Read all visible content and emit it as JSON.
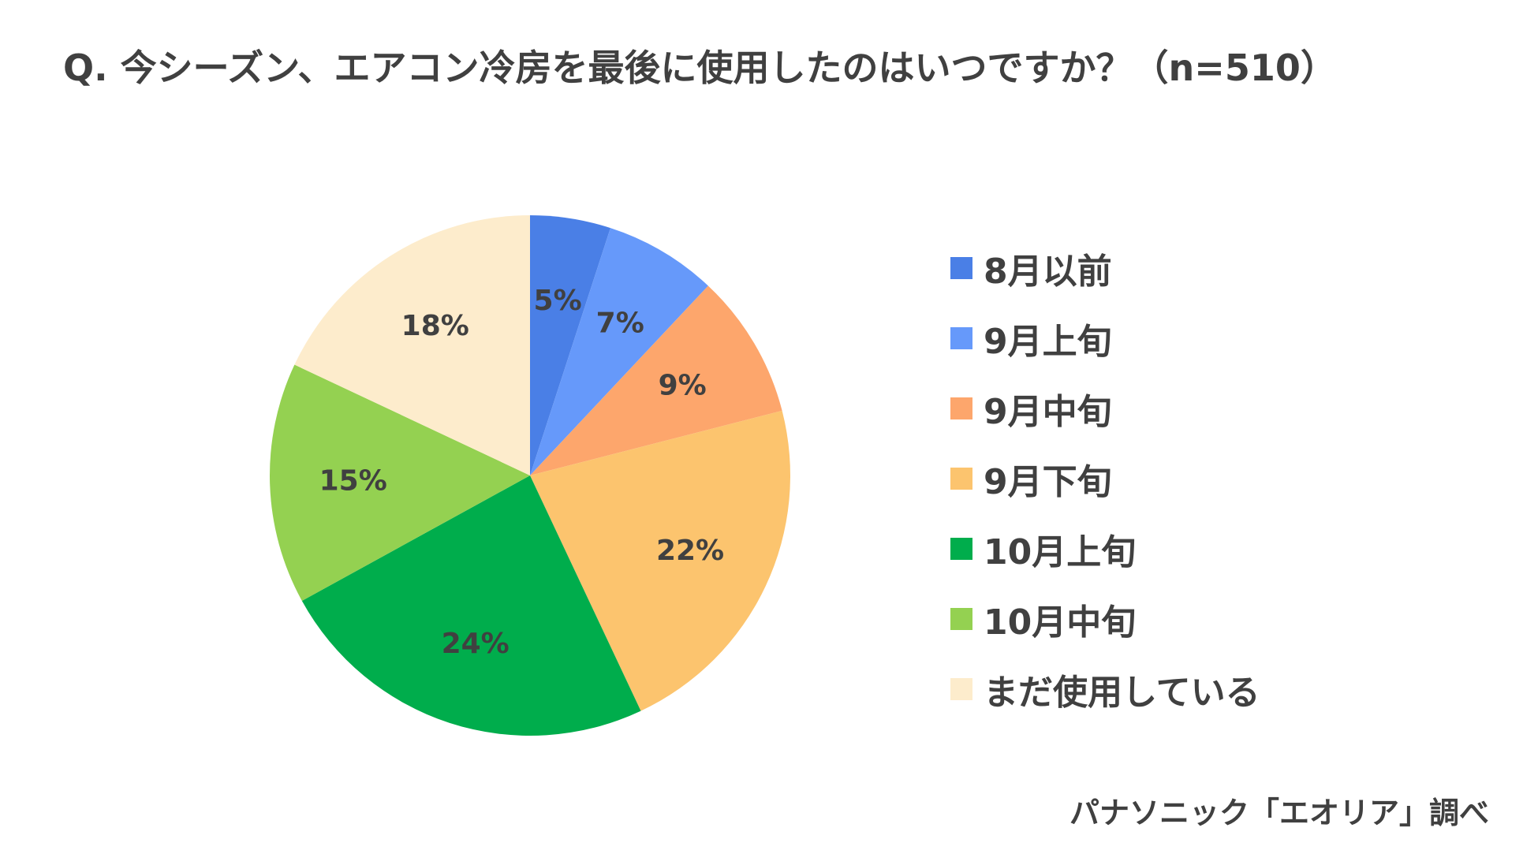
{
  "chart_data": {
    "type": "pie",
    "title": "Q. 今シーズン、エアコン冷房を最後に使用したのはいつですか？（n=510）",
    "legend_position": "right",
    "start_angle_deg": 0,
    "direction": "clockwise",
    "slices": [
      {
        "label": "8月以前",
        "value": 5,
        "display": "5%",
        "color": "#4a7fe6"
      },
      {
        "label": "9月上旬",
        "value": 7,
        "display": "7%",
        "color": "#6699fa"
      },
      {
        "label": "9月中旬",
        "value": 9,
        "display": "9%",
        "color": "#fda66c"
      },
      {
        "label": "9月下旬",
        "value": 22,
        "display": "22%",
        "color": "#fcc46e"
      },
      {
        "label": "10月上旬",
        "value": 24,
        "display": "24%",
        "color": "#00ad4c"
      },
      {
        "label": "10月中旬",
        "value": 15,
        "display": "15%",
        "color": "#94d151"
      },
      {
        "label": "まだ使用している",
        "value": 18,
        "display": "18%",
        "color": "#fdeccc"
      }
    ]
  },
  "source": "パナソニック「エオリア」調べ"
}
